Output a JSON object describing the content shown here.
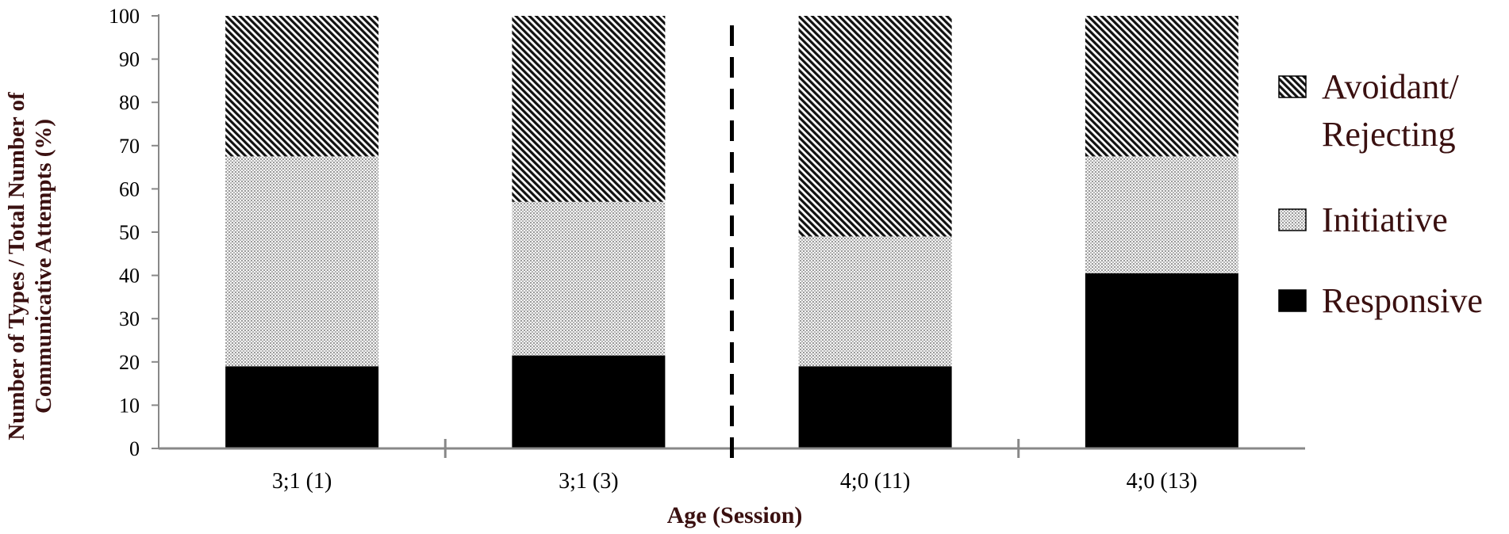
{
  "chart_data": {
    "type": "bar",
    "stacked": true,
    "categories": [
      "3;1 (1)",
      "3;1 (3)",
      "4;0 (11)",
      "4;0 (13)"
    ],
    "series": [
      {
        "name": "Responsive",
        "values": [
          19,
          21.5,
          19,
          40.5
        ],
        "pattern": "solid"
      },
      {
        "name": "Initiative",
        "values": [
          48.5,
          35.5,
          30,
          27
        ],
        "pattern": "dots"
      },
      {
        "name": "Avoidant/ Rejecting",
        "legend_lines": [
          "Avoidant/",
          "Rejecting"
        ],
        "values": [
          32.5,
          43,
          51,
          32.5
        ],
        "pattern": "diagonal"
      }
    ],
    "legend_order": [
      "Avoidant/ Rejecting",
      "Initiative",
      "Responsive"
    ],
    "legend_placement": "right",
    "ylim": [
      0,
      100
    ],
    "yticks": [
      0,
      10,
      20,
      30,
      40,
      50,
      60,
      70,
      80,
      90,
      100
    ],
    "ylabel_lines": [
      "Number of Types / Total Number of",
      "Communicative Attempts (%)"
    ],
    "xlabel": "Age (Session)",
    "divider_after_category": 2,
    "grid": false,
    "colors": {
      "axis": "#888888",
      "bar": "#000000",
      "label": "#3a1010"
    }
  }
}
